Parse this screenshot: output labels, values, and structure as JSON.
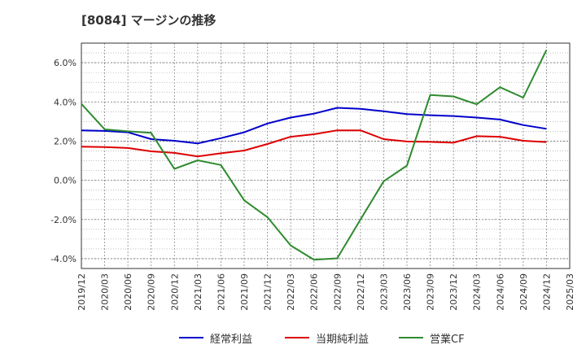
{
  "chart_data": {
    "type": "line",
    "title": "[8084]  マージンの推移",
    "xlabel": "",
    "ylabel": "",
    "x": [
      "2019/12",
      "2020/03",
      "2020/06",
      "2020/09",
      "2020/12",
      "2021/03",
      "2021/06",
      "2021/09",
      "2021/12",
      "2022/03",
      "2022/06",
      "2022/09",
      "2022/12",
      "2023/03",
      "2023/06",
      "2023/09",
      "2023/12",
      "2024/03",
      "2024/06",
      "2024/09",
      "2024/12"
    ],
    "x_ticks": [
      "2019/12",
      "2020/03",
      "2020/06",
      "2020/09",
      "2020/12",
      "2021/03",
      "2021/06",
      "2021/09",
      "2021/12",
      "2022/03",
      "2022/06",
      "2022/09",
      "2022/12",
      "2023/03",
      "2023/06",
      "2023/09",
      "2023/12",
      "2024/03",
      "2024/06",
      "2024/09",
      "2024/12",
      "2025/03"
    ],
    "ylim": [
      -4.5,
      7.0
    ],
    "y_ticks": [
      -4.0,
      -2.0,
      0.0,
      2.0,
      4.0,
      6.0
    ],
    "y_tick_labels": [
      "-4.0%",
      "-2.0%",
      "0.0%",
      "2.0%",
      "4.0%",
      "6.0%"
    ],
    "grid": true,
    "legend_position": "bottom",
    "series": [
      {
        "name": "経常利益",
        "color": "#0000cc",
        "values": [
          2.55,
          2.52,
          2.45,
          2.1,
          2.02,
          1.88,
          2.15,
          2.45,
          2.9,
          3.2,
          3.4,
          3.7,
          3.65,
          3.52,
          3.38,
          3.32,
          3.28,
          3.2,
          3.1,
          2.82,
          2.63
        ]
      },
      {
        "name": "当期純利益",
        "color": "#dd0000",
        "values": [
          1.72,
          1.7,
          1.65,
          1.48,
          1.4,
          1.22,
          1.38,
          1.52,
          1.85,
          2.22,
          2.35,
          2.55,
          2.55,
          2.1,
          1.98,
          1.96,
          1.92,
          2.25,
          2.22,
          2.02,
          1.95
        ]
      },
      {
        "name": "営業CF",
        "color": "#2e8b2e",
        "values": [
          3.9,
          2.6,
          2.5,
          2.42,
          0.58,
          1.02,
          0.78,
          -1.02,
          -1.88,
          -3.32,
          -4.05,
          -3.98,
          -2.0,
          -0.05,
          0.75,
          4.35,
          4.28,
          3.88,
          4.75,
          4.22,
          6.65
        ]
      }
    ]
  }
}
